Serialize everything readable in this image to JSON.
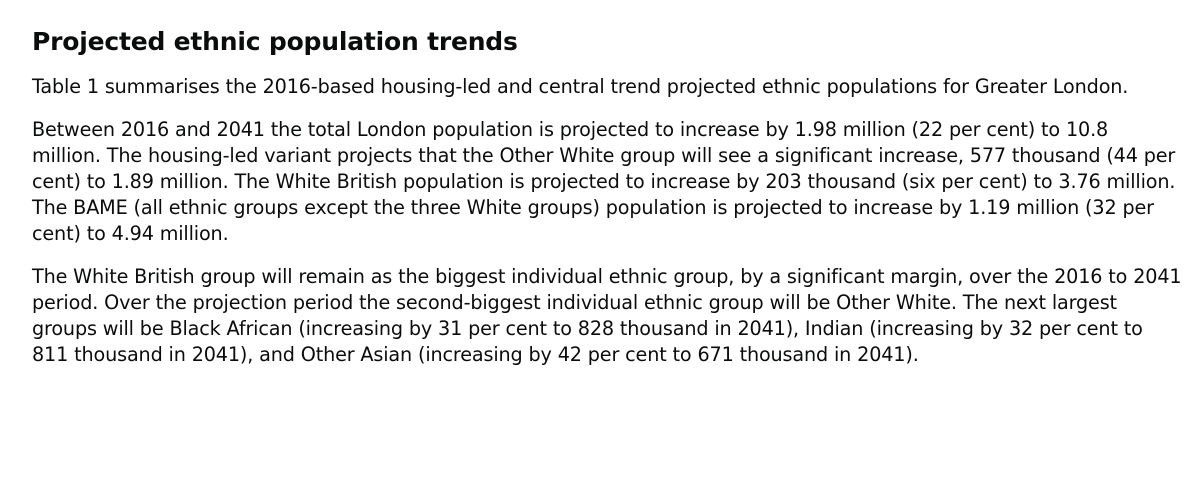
{
  "article": {
    "heading": "Projected ethnic population trends",
    "paragraphs": [
      "Table 1 summarises the 2016-based housing-led and central trend projected ethnic populations for Greater London.",
      "Between 2016 and 2041 the total London population is projected to increase by 1.98 million (22 per cent) to 10.8 million. The housing-led variant projects that the Other White group will see a significant increase, 577 thousand (44 per cent) to 1.89 million. The White British population is projected to increase by 203 thousand (six per cent) to 3.76 million. The BAME (all ethnic groups except the three White groups) population is projected to increase by 1.19 million (32 per cent) to 4.94 million.",
      "The White British group will remain as the biggest individual ethnic group, by a significant margin, over the 2016 to 2041 period. Over the projection period the second-biggest individual ethnic group will be Other White. The next largest groups will be Black African (increasing by 31 per cent to 828 thousand in 2041), Indian (increasing by 32 per cent to 811 thousand in 2041), and Other Asian (increasing by 42 per cent to 671 thousand in 2041)."
    ]
  }
}
